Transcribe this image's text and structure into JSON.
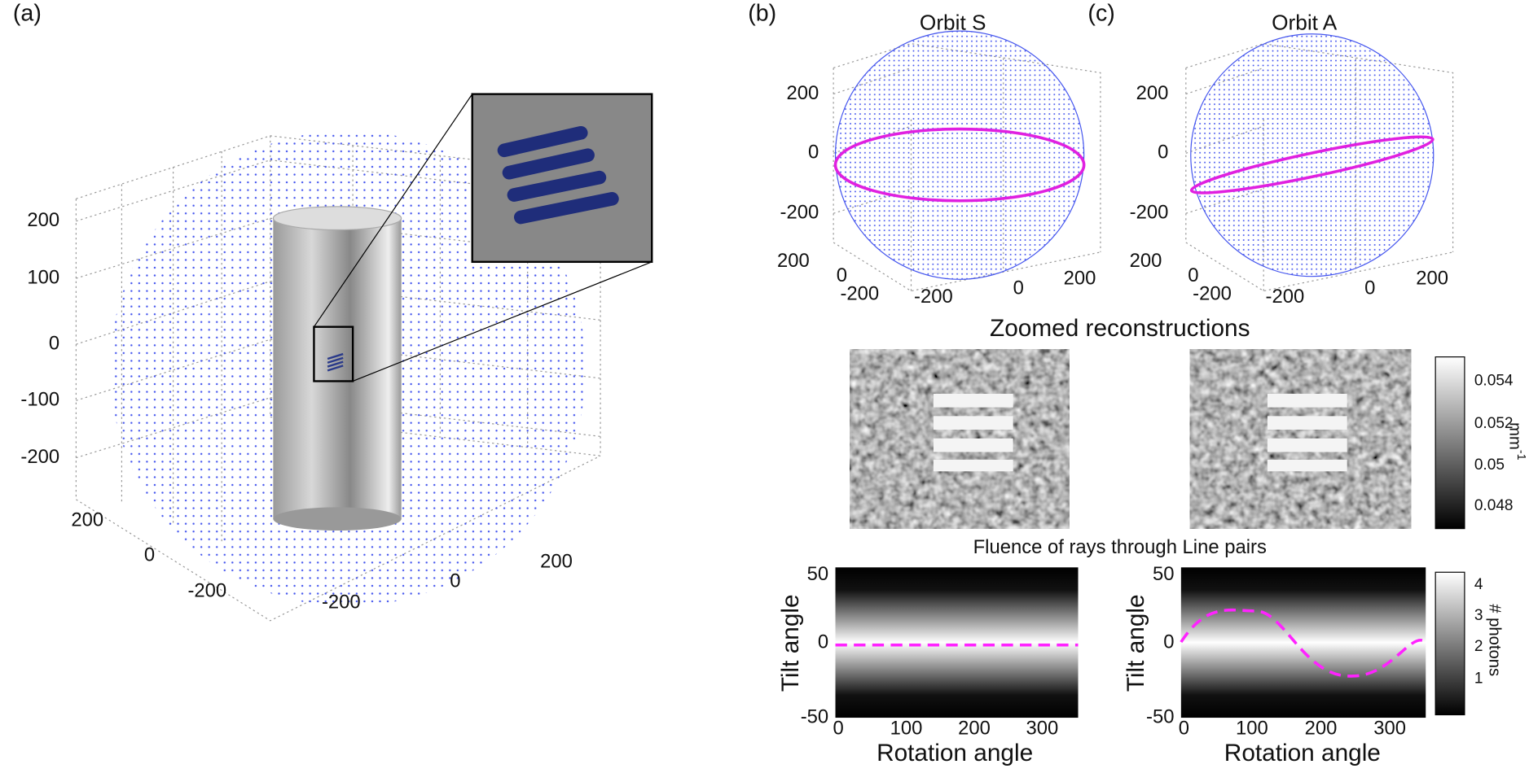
{
  "panel_a": {
    "label": "(a)",
    "z_ticks": [
      200,
      100,
      0,
      -100,
      -200
    ],
    "x_ticks": [
      200,
      0,
      -200
    ],
    "y_ticks": [
      -200,
      0,
      200
    ]
  },
  "panel_b": {
    "label": "(b)",
    "title": "Orbit S",
    "z_ticks": [
      200,
      0,
      -200
    ],
    "x_ticks": [
      200,
      0,
      -200
    ],
    "y_ticks": [
      -200,
      0,
      200
    ]
  },
  "panel_c": {
    "label": "(c)",
    "title": "Orbit A",
    "z_ticks": [
      200,
      0,
      -200
    ],
    "x_ticks": [
      200,
      0,
      -200
    ],
    "y_ticks": [
      -200,
      0,
      200
    ]
  },
  "reconstructions": {
    "title": "Zoomed reconstructions",
    "colorbar_ticks": [
      0.054,
      0.052,
      0.05,
      0.048
    ],
    "colorbar_unit": "mm",
    "colorbar_unit_exponent": "-1"
  },
  "fluence": {
    "title": "Fluence of rays through Line pairs",
    "y_label": "Tilt angle",
    "x_label": "Rotation angle",
    "y_ticks": [
      50,
      0,
      -50
    ],
    "x_ticks": [
      0,
      100,
      200,
      300
    ],
    "colorbar_ticks": [
      4,
      3,
      2,
      1
    ],
    "colorbar_label": "# photons"
  }
}
